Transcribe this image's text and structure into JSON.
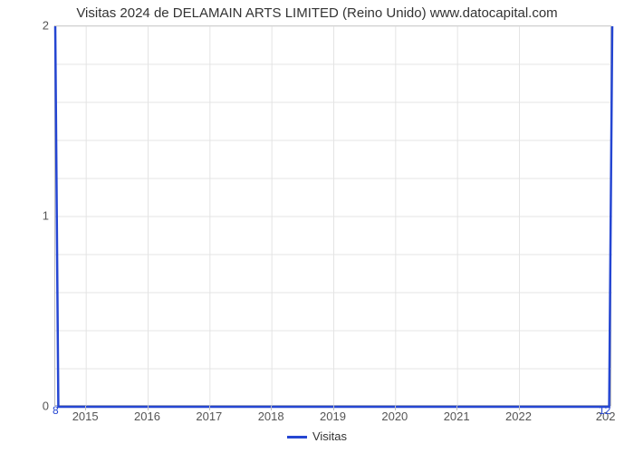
{
  "chart": {
    "type": "line",
    "title": "Visitas 2024 de DELAMAIN ARTS LIMITED (Reino Unido) www.datocapital.com",
    "title_fontsize": 15,
    "title_color": "#333333",
    "background_color": "#ffffff",
    "plot_border_color": "#bdbdbd",
    "grid_color": "#e4e4e4",
    "grid_width": 1,
    "x": {
      "min": 2014.5,
      "max": 2023.5,
      "ticks": [
        2015,
        2016,
        2017,
        2018,
        2019,
        2020,
        2021,
        2022
      ],
      "tick_labels": [
        "2015",
        "2016",
        "2017",
        "2018",
        "2019",
        "2020",
        "2021",
        "2022"
      ],
      "last_partial_label": "202",
      "label_fontsize": 13,
      "minor_gridlines": 4
    },
    "y": {
      "min": 0,
      "max": 2,
      "ticks": [
        0,
        1,
        2
      ],
      "tick_labels": [
        "0",
        "1",
        "2"
      ],
      "label_fontsize": 13,
      "minor_gridlines": 4
    },
    "series": {
      "name": "Visitas",
      "color": "#2546d2",
      "line_width": 2.5,
      "points": [
        {
          "x": 2014.5,
          "y": 2
        },
        {
          "x": 2014.55,
          "y": 0
        },
        {
          "x": 2023.45,
          "y": 0
        },
        {
          "x": 2023.5,
          "y": 2
        }
      ],
      "left_value_label": "8",
      "right_value_label": "12"
    },
    "legend": {
      "label": "Visitas",
      "swatch_color": "#2546d2"
    }
  }
}
